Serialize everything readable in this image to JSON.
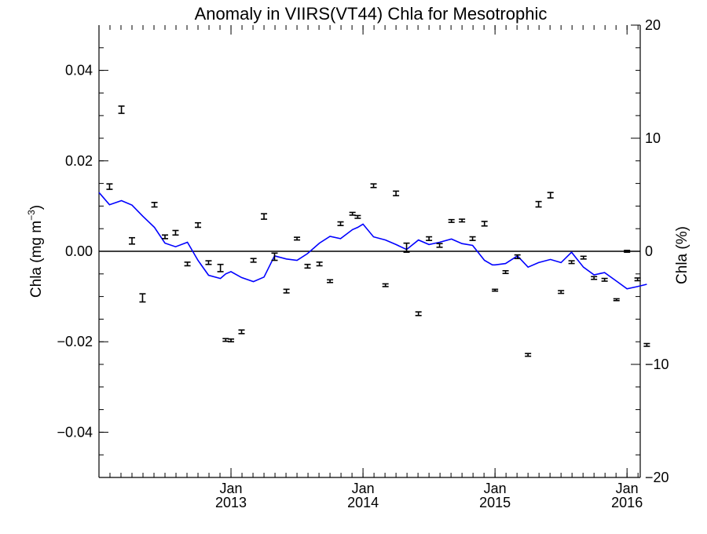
{
  "chart_data": {
    "type": "scatter",
    "title": "Anomaly in VIIRS(VT44) Chla for Mesotrophic",
    "ylabel_left": "Chla (mg m",
    "ylabel_left_sup": "−3",
    "ylabel_left_close": ")",
    "ylabel_right": "Chla (%)",
    "xlim": [
      2012.0,
      2016.1
    ],
    "ylim_left": [
      -0.05,
      0.05
    ],
    "ylim_right": [
      -20,
      20
    ],
    "left_ticks": [
      {
        "value": 0.04,
        "label": "0.04"
      },
      {
        "value": 0.02,
        "label": "0.02"
      },
      {
        "value": 0.0,
        "label": "0.00"
      },
      {
        "value": -0.02,
        "label": "−0.02"
      },
      {
        "value": -0.04,
        "label": "−0.04"
      }
    ],
    "right_ticks": [
      {
        "value": 20,
        "label": "20"
      },
      {
        "value": 10,
        "label": "10"
      },
      {
        "value": 0,
        "label": "0"
      },
      {
        "value": -10,
        "label": "−10"
      },
      {
        "value": -20,
        "label": "−20"
      }
    ],
    "x_ticks": [
      {
        "value": 2013.0,
        "month": "Jan",
        "year": "2013"
      },
      {
        "value": 2014.0,
        "month": "Jan",
        "year": "2014"
      },
      {
        "value": 2015.0,
        "month": "Jan",
        "year": "2015"
      },
      {
        "value": 2016.0,
        "month": "Jan",
        "year": "2016"
      }
    ],
    "zero_line": 0,
    "series": [
      {
        "kind": "errorbars",
        "color": "#000000",
        "x": [
          2012.08,
          2012.17,
          2012.25,
          2012.33,
          2012.42,
          2012.5,
          2012.58,
          2012.67,
          2012.75,
          2012.83,
          2012.92,
          2012.96,
          2013.0,
          2013.08,
          2013.17,
          2013.25,
          2013.33,
          2013.42,
          2013.5,
          2013.58,
          2013.67,
          2013.75,
          2013.83,
          2013.92,
          2013.96,
          2014.08,
          2014.17,
          2014.25,
          2014.33,
          2014.42,
          2014.5,
          2014.58,
          2014.67,
          2014.75,
          2014.83,
          2014.92,
          2015.0,
          2015.08,
          2015.17,
          2015.25,
          2015.33,
          2015.42,
          2015.5,
          2015.58,
          2015.67,
          2015.75,
          2015.83,
          2015.92,
          2016.0,
          2016.08,
          2016.15
        ],
        "y": [
          0.0143,
          0.0313,
          0.0023,
          -0.0103,
          0.0103,
          0.0032,
          0.0041,
          -0.0028,
          0.0058,
          -0.0025,
          -0.0037,
          -0.0196,
          -0.0197,
          -0.0178,
          -0.002,
          0.0077,
          -0.0012,
          -0.0088,
          0.0028,
          -0.0033,
          -0.0028,
          -0.0066,
          0.0061,
          0.0083,
          0.0076,
          0.0145,
          -0.0075,
          0.0128,
          0.0008,
          -0.0138,
          0.0028,
          0.0013,
          0.0067,
          0.0068,
          0.0028,
          0.0061,
          -0.0086,
          -0.0046,
          -0.0012,
          -0.0229,
          0.0104,
          0.0124,
          -0.009,
          -0.0024,
          -0.0014,
          -0.0059,
          -0.0063,
          -0.0107,
          0.0,
          -0.0062,
          -0.0207
        ],
        "err": [
          0.0006,
          0.0008,
          0.0007,
          0.0009,
          0.0005,
          0.0004,
          0.0005,
          0.0004,
          0.0005,
          0.0004,
          0.0008,
          0.0003,
          0.0003,
          0.0004,
          0.0004,
          0.0006,
          0.0008,
          0.0004,
          0.0003,
          0.0004,
          0.0004,
          0.0003,
          0.0004,
          0.0003,
          0.0003,
          0.0004,
          0.0003,
          0.0005,
          0.001,
          0.0004,
          0.0004,
          0.0004,
          0.0003,
          0.0003,
          0.0004,
          0.0005,
          0.0002,
          0.0003,
          0.0004,
          0.0003,
          0.0006,
          0.0006,
          0.0003,
          0.0003,
          0.0003,
          0.0003,
          0.0003,
          0.0002,
          0.0002,
          0.0003,
          0.0003
        ]
      },
      {
        "kind": "line",
        "color": "#0000ff",
        "x": [
          2012.0,
          2012.08,
          2012.17,
          2012.25,
          2012.33,
          2012.42,
          2012.5,
          2012.58,
          2012.67,
          2012.75,
          2012.83,
          2012.92,
          2012.96,
          2013.0,
          2013.08,
          2013.17,
          2013.25,
          2013.33,
          2013.42,
          2013.5,
          2013.58,
          2013.67,
          2013.75,
          2013.83,
          2013.92,
          2013.96,
          2014.0,
          2014.08,
          2014.17,
          2014.25,
          2014.33,
          2014.42,
          2014.5,
          2014.58,
          2014.67,
          2014.75,
          2014.83,
          2014.92,
          2014.98,
          2015.0,
          2015.08,
          2015.17,
          2015.25,
          2015.33,
          2015.42,
          2015.5,
          2015.58,
          2015.67,
          2015.75,
          2015.83,
          2015.92,
          2016.0,
          2016.08,
          2016.15
        ],
        "y": [
          0.013,
          0.0103,
          0.0112,
          0.0102,
          0.0078,
          0.0053,
          0.0018,
          0.001,
          0.002,
          -0.002,
          -0.0053,
          -0.006,
          -0.005,
          -0.0045,
          -0.0058,
          -0.0067,
          -0.0057,
          -0.001,
          -0.0017,
          -0.002,
          -0.0005,
          0.0018,
          0.0033,
          0.0028,
          0.0048,
          0.0053,
          0.006,
          0.0032,
          0.0025,
          0.0015,
          0.0004,
          0.0025,
          0.0015,
          0.002,
          0.0027,
          0.0017,
          0.0013,
          -0.002,
          -0.003,
          -0.003,
          -0.0027,
          -0.001,
          -0.0035,
          -0.0025,
          -0.0018,
          -0.0025,
          -0.0002,
          -0.0035,
          -0.0052,
          -0.0047,
          -0.0066,
          -0.0083,
          -0.0078,
          -0.0073
        ]
      }
    ]
  }
}
